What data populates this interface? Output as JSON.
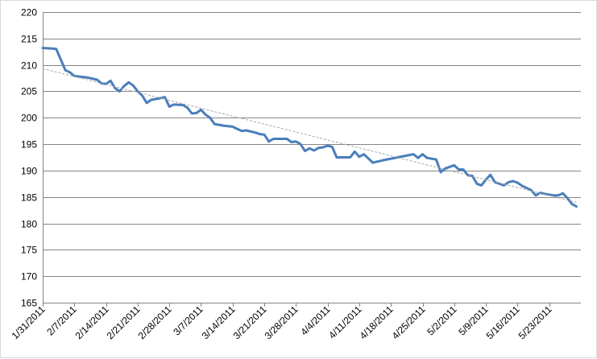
{
  "chart_data": {
    "type": "line",
    "title": "",
    "xlabel": "",
    "ylabel": "",
    "ylim": [
      165,
      220
    ],
    "yticks": [
      165,
      170,
      175,
      180,
      185,
      190,
      195,
      200,
      205,
      210,
      215,
      220
    ],
    "xlim": [
      "1/31/2011",
      "5/30/2011"
    ],
    "xticks": [
      "1/31/2011",
      "2/7/2011",
      "2/14/2011",
      "2/21/2011",
      "2/28/2011",
      "3/7/2011",
      "3/14/2011",
      "3/21/2011",
      "3/28/2011",
      "4/4/2011",
      "4/11/2011",
      "4/18/2011",
      "4/25/2011",
      "5/2/2011",
      "5/9/2011",
      "5/16/2011",
      "5/23/2011"
    ],
    "grid": true,
    "legend": "none",
    "series": [
      {
        "type": "line",
        "color": "#4a7ebb",
        "points": [
          [
            "1/31/2011",
            213.2
          ],
          [
            "2/2/2011",
            213.1
          ],
          [
            "2/3/2011",
            213.0
          ],
          [
            "2/4/2011",
            211.0
          ],
          [
            "2/5/2011",
            209.0
          ],
          [
            "2/6/2011",
            208.6
          ],
          [
            "2/7/2011",
            207.9
          ],
          [
            "2/9/2011",
            207.7
          ],
          [
            "2/10/2011",
            207.6
          ],
          [
            "2/12/2011",
            207.2
          ],
          [
            "2/13/2011",
            206.5
          ],
          [
            "2/14/2011",
            206.4
          ],
          [
            "2/15/2011",
            207.0
          ],
          [
            "2/16/2011",
            205.6
          ],
          [
            "2/17/2011",
            205.0
          ],
          [
            "2/18/2011",
            206.0
          ],
          [
            "2/19/2011",
            206.7
          ],
          [
            "2/20/2011",
            206.1
          ],
          [
            "2/21/2011",
            205.0
          ],
          [
            "2/22/2011",
            204.2
          ],
          [
            "2/23/2011",
            202.8
          ],
          [
            "2/24/2011",
            203.4
          ],
          [
            "2/26/2011",
            203.7
          ],
          [
            "2/27/2011",
            203.9
          ],
          [
            "2/28/2011",
            202.1
          ],
          [
            "3/1/2011",
            202.5
          ],
          [
            "3/3/2011",
            202.4
          ],
          [
            "3/4/2011",
            201.9
          ],
          [
            "3/5/2011",
            200.8
          ],
          [
            "3/6/2011",
            200.9
          ],
          [
            "3/7/2011",
            201.5
          ],
          [
            "3/8/2011",
            200.6
          ],
          [
            "3/9/2011",
            200.0
          ],
          [
            "3/10/2011",
            198.8
          ],
          [
            "3/12/2011",
            198.5
          ],
          [
            "3/14/2011",
            198.3
          ],
          [
            "3/15/2011",
            197.9
          ],
          [
            "3/16/2011",
            197.5
          ],
          [
            "3/17/2011",
            197.6
          ],
          [
            "3/19/2011",
            197.2
          ],
          [
            "3/20/2011",
            196.9
          ],
          [
            "3/21/2011",
            196.8
          ],
          [
            "3/22/2011",
            195.5
          ],
          [
            "3/23/2011",
            196.0
          ],
          [
            "3/25/2011",
            196.0
          ],
          [
            "3/26/2011",
            196.0
          ],
          [
            "3/27/2011",
            195.4
          ],
          [
            "3/28/2011",
            195.5
          ],
          [
            "3/29/2011",
            195.0
          ],
          [
            "3/30/2011",
            193.7
          ],
          [
            "3/31/2011",
            194.2
          ],
          [
            "4/1/2011",
            193.8
          ],
          [
            "4/2/2011",
            194.3
          ],
          [
            "4/3/2011",
            194.4
          ],
          [
            "4/4/2011",
            194.7
          ],
          [
            "4/5/2011",
            194.5
          ],
          [
            "4/6/2011",
            192.5
          ],
          [
            "4/9/2011",
            192.5
          ],
          [
            "4/10/2011",
            193.6
          ],
          [
            "4/11/2011",
            192.6
          ],
          [
            "4/12/2011",
            193.1
          ],
          [
            "4/13/2011",
            192.3
          ],
          [
            "4/14/2011",
            191.5
          ],
          [
            "4/16/2011",
            191.9
          ],
          [
            "4/23/2011",
            193.1
          ],
          [
            "4/24/2011",
            192.4
          ],
          [
            "4/25/2011",
            193.1
          ],
          [
            "4/26/2011",
            192.4
          ],
          [
            "4/28/2011",
            192.1
          ],
          [
            "4/29/2011",
            189.7
          ],
          [
            "4/30/2011",
            190.4
          ],
          [
            "5/2/2011",
            191.0
          ],
          [
            "5/3/2011",
            190.2
          ],
          [
            "5/4/2011",
            190.2
          ],
          [
            "5/5/2011",
            189.1
          ],
          [
            "5/6/2011",
            189.0
          ],
          [
            "5/7/2011",
            187.5
          ],
          [
            "5/8/2011",
            187.2
          ],
          [
            "5/9/2011",
            188.3
          ],
          [
            "5/10/2011",
            189.2
          ],
          [
            "5/11/2011",
            187.8
          ],
          [
            "5/13/2011",
            187.2
          ],
          [
            "5/14/2011",
            187.8
          ],
          [
            "5/15/2011",
            188.0
          ],
          [
            "5/16/2011",
            187.7
          ],
          [
            "5/17/2011",
            187.1
          ],
          [
            "5/19/2011",
            186.3
          ],
          [
            "5/20/2011",
            185.3
          ],
          [
            "5/21/2011",
            185.8
          ],
          [
            "5/22/2011",
            185.6
          ],
          [
            "5/24/2011",
            185.3
          ],
          [
            "5/25/2011",
            185.3
          ],
          [
            "5/26/2011",
            185.7
          ],
          [
            "5/27/2011",
            184.8
          ],
          [
            "5/28/2011",
            183.7
          ],
          [
            "5/29/2011",
            183.2
          ]
        ]
      },
      {
        "type": "trendline",
        "style": "dashed",
        "color": "#a6a6a6",
        "points": [
          [
            "1/31/2011",
            209.3
          ],
          [
            "5/29/2011",
            184.0
          ]
        ]
      }
    ]
  }
}
